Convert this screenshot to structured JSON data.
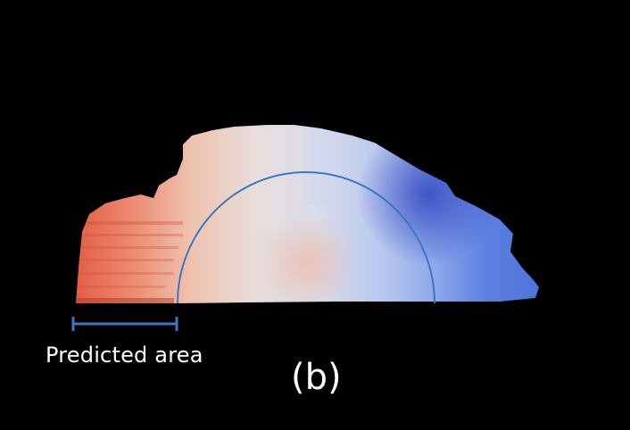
{
  "annotation": {
    "predicted_area_label": "Predicted area",
    "panel_label": "(b)"
  },
  "colors": {
    "background": "#000000",
    "warm": "#e86a4e",
    "neutral": "#dfe2ea",
    "cool": "#3d5fd6",
    "marker_blue": "#3a78c4",
    "text": "#ffffff"
  }
}
